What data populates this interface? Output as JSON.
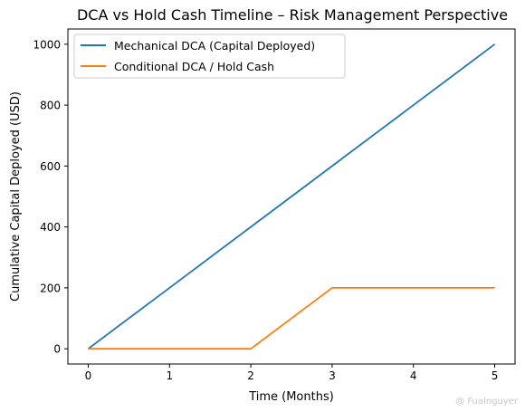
{
  "chart_data": {
    "type": "line",
    "title": "DCA vs Hold Cash Timeline – Risk Management Perspective",
    "xlabel": "Time (Months)",
    "ylabel": "Cumulative Capital Deployed (USD)",
    "x": [
      0,
      1,
      2,
      3,
      4,
      5
    ],
    "xlim": [
      -0.25,
      5.25
    ],
    "ylim": [
      -50,
      1050
    ],
    "xticks": [
      0,
      1,
      2,
      3,
      4,
      5
    ],
    "yticks": [
      0,
      200,
      400,
      600,
      800,
      1000
    ],
    "grid": false,
    "legend_position": "top-left",
    "series": [
      {
        "name": "Mechanical DCA (Capital Deployed)",
        "color": "#1f77b4",
        "values": [
          0,
          200,
          400,
          600,
          800,
          1000
        ]
      },
      {
        "name": "Conditional DCA / Hold Cash",
        "color": "#ff7f0e",
        "values": [
          0,
          0,
          0,
          200,
          200,
          200
        ]
      }
    ]
  },
  "watermark": "@ Fualnguyer"
}
